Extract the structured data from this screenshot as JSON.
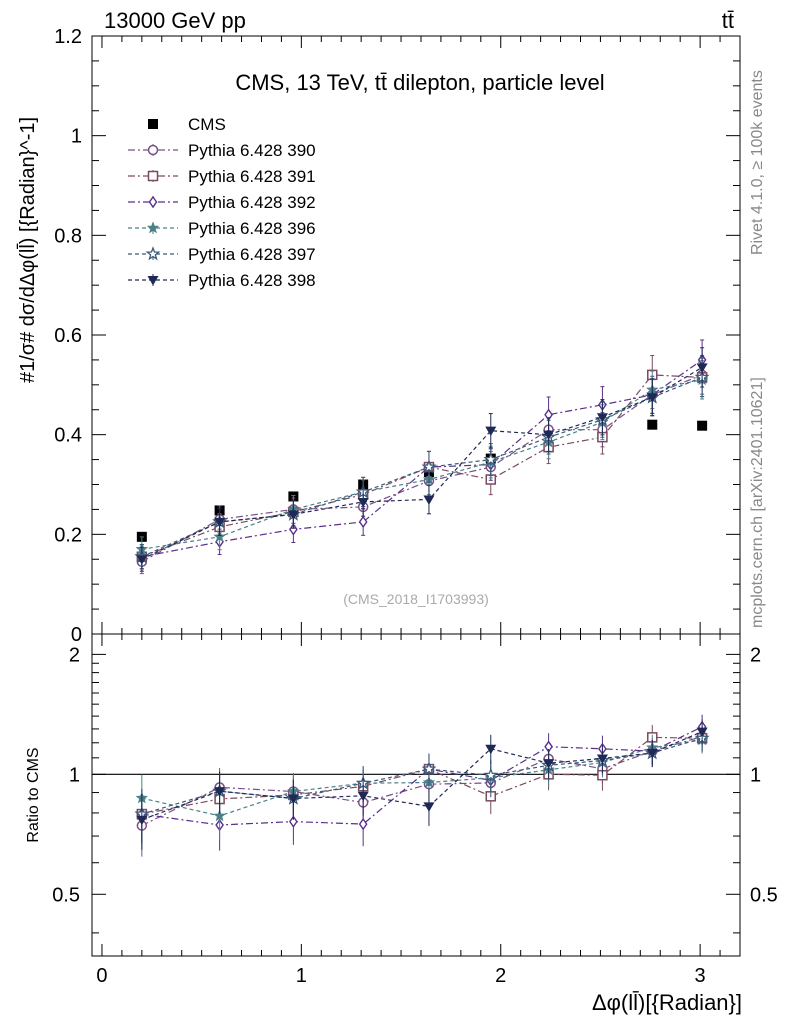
{
  "header": {
    "left": "13000 GeV pp",
    "right": "tt̄"
  },
  "side_labels": {
    "rivet": "Rivet 4.1.0, ≥ 100k events",
    "mcplots": "mcplots.cern.ch [arXiv:2401.10621]"
  },
  "chart_data": {
    "type": "line",
    "title": "CMS, 13 TeV, tt̄ dilepton, particle level",
    "watermark": "(CMS_2018_I1703993)",
    "xlabel": "Δφ(ll̄)[{Radian}]",
    "ylabel": "#1/σ# dσ/dΔφ(ll̄) [{Radian}^-1]",
    "ratio_ylabel": "Ratio to CMS",
    "xlim": [
      -0.05,
      3.2
    ],
    "ylim": [
      0,
      1.2
    ],
    "ratio_ylim": [
      0.35,
      2.25
    ],
    "x_ticks": [
      "0",
      "1",
      "2",
      "3"
    ],
    "y_ticks": [
      "0.2",
      "0.4",
      "0.6",
      "0.8",
      "1",
      "1.2"
    ],
    "y_tick_bottom": "0",
    "ratio_y_ticks": [
      "0.5",
      "1",
      "2"
    ],
    "ratio_y_ticks_right": [
      "0.5",
      "1",
      "2"
    ],
    "x": [
      0.2,
      0.59,
      0.96,
      1.31,
      1.64,
      1.95,
      2.24,
      2.51,
      2.76,
      3.01
    ],
    "series": [
      {
        "name": "CMS",
        "color": "#000000",
        "marker": "square-filled",
        "dash": "none",
        "values": [
          0.195,
          0.248,
          0.276,
          0.3,
          0.325,
          0.352,
          0.375,
          0.397,
          0.42,
          0.418
        ]
      },
      {
        "name": "Pythia 6.428 390",
        "color": "#7a4f86",
        "marker": "circle-open",
        "dash": "7,3,2,3",
        "values": [
          0.145,
          0.23,
          0.25,
          0.255,
          0.307,
          0.335,
          0.41,
          0.41,
          0.48,
          0.52
        ]
      },
      {
        "name": "Pythia 6.428 391",
        "color": "#7a4a60",
        "marker": "square-open",
        "dash": "7,3,2,3",
        "values": [
          0.155,
          0.215,
          0.245,
          0.28,
          0.335,
          0.31,
          0.375,
          0.395,
          0.52,
          0.515
        ]
      },
      {
        "name": "Pythia 6.428 392",
        "color": "#5a2f8a",
        "marker": "diamond-open",
        "dash": "7,3,2,3",
        "values": [
          0.155,
          0.185,
          0.21,
          0.225,
          0.335,
          0.34,
          0.44,
          0.46,
          0.48,
          0.55
        ]
      },
      {
        "name": "Pythia 6.428 396",
        "color": "#4a8088",
        "marker": "star-filled",
        "dash": "4,3",
        "values": [
          0.17,
          0.195,
          0.25,
          0.285,
          0.31,
          0.345,
          0.385,
          0.425,
          0.49,
          0.51
        ]
      },
      {
        "name": "Pythia 6.428 397",
        "color": "#3a5a7a",
        "marker": "star-open",
        "dash": "4,3",
        "values": [
          0.155,
          0.225,
          0.24,
          0.285,
          0.335,
          0.35,
          0.395,
          0.43,
          0.475,
          0.515
        ]
      },
      {
        "name": "Pythia 6.428 398",
        "color": "#1e2a55",
        "marker": "triangle-down-filled",
        "dash": "4,3",
        "values": [
          0.15,
          0.225,
          0.24,
          0.265,
          0.27,
          0.408,
          0.4,
          0.435,
          0.475,
          0.535
        ]
      }
    ]
  }
}
